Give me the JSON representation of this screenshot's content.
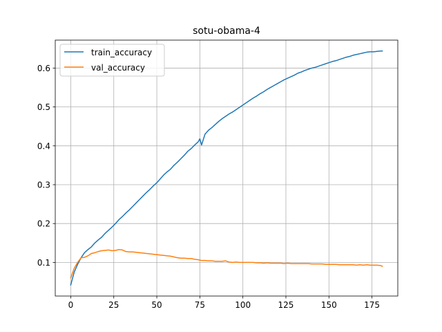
{
  "chart_data": {
    "type": "line",
    "title": "sotu-obama-4",
    "xlabel": "",
    "ylabel": "",
    "xlim": [
      -9,
      190
    ],
    "ylim": [
      0.0135,
      0.672
    ],
    "xticks": [
      0,
      25,
      50,
      75,
      100,
      125,
      150,
      175
    ],
    "yticks": [
      0.1,
      0.2,
      0.3,
      0.4,
      0.5,
      0.6
    ],
    "xtick_labels": [
      "0",
      "25",
      "50",
      "75",
      "100",
      "125",
      "150",
      "175"
    ],
    "ytick_labels": [
      "0.1",
      "0.2",
      "0.3",
      "0.4",
      "0.5",
      "0.6"
    ],
    "grid": true,
    "legend_position": "upper left",
    "series": [
      {
        "name": "train_accuracy",
        "color": "#1f77b4",
        "x": [
          0,
          2,
          4,
          6,
          8,
          10,
          12,
          14,
          16,
          18,
          20,
          22,
          24,
          26,
          28,
          30,
          32,
          34,
          36,
          38,
          40,
          42,
          44,
          46,
          48,
          50,
          52,
          54,
          56,
          58,
          60,
          62,
          64,
          66,
          68,
          70,
          72,
          74,
          75,
          76,
          78,
          80,
          82,
          84,
          86,
          88,
          90,
          92,
          94,
          96,
          98,
          100,
          102,
          104,
          106,
          108,
          110,
          112,
          114,
          116,
          118,
          120,
          122,
          124,
          126,
          128,
          130,
          132,
          134,
          136,
          138,
          140,
          142,
          144,
          146,
          148,
          150,
          152,
          154,
          156,
          158,
          160,
          162,
          164,
          166,
          168,
          170,
          172,
          174,
          176,
          178,
          180,
          181
        ],
        "values": [
          0.042,
          0.075,
          0.095,
          0.112,
          0.125,
          0.133,
          0.14,
          0.15,
          0.158,
          0.165,
          0.175,
          0.183,
          0.191,
          0.2,
          0.21,
          0.218,
          0.227,
          0.235,
          0.244,
          0.253,
          0.262,
          0.271,
          0.28,
          0.288,
          0.297,
          0.305,
          0.315,
          0.325,
          0.333,
          0.34,
          0.35,
          0.358,
          0.367,
          0.376,
          0.386,
          0.393,
          0.402,
          0.41,
          0.418,
          0.402,
          0.43,
          0.44,
          0.447,
          0.455,
          0.463,
          0.47,
          0.476,
          0.482,
          0.487,
          0.493,
          0.499,
          0.505,
          0.511,
          0.517,
          0.523,
          0.528,
          0.534,
          0.539,
          0.545,
          0.55,
          0.555,
          0.56,
          0.565,
          0.57,
          0.574,
          0.578,
          0.582,
          0.587,
          0.59,
          0.594,
          0.597,
          0.6,
          0.602,
          0.605,
          0.608,
          0.611,
          0.614,
          0.617,
          0.619,
          0.622,
          0.625,
          0.628,
          0.63,
          0.633,
          0.635,
          0.637,
          0.639,
          0.641,
          0.642,
          0.642,
          0.643,
          0.644,
          0.644
        ]
      },
      {
        "name": "val_accuracy",
        "color": "#ff7f0e",
        "x": [
          0,
          2,
          4,
          6,
          8,
          10,
          12,
          14,
          16,
          18,
          20,
          22,
          24,
          26,
          28,
          30,
          32,
          34,
          36,
          38,
          40,
          42,
          44,
          46,
          48,
          50,
          52,
          54,
          56,
          58,
          60,
          62,
          64,
          66,
          68,
          70,
          72,
          74,
          76,
          78,
          80,
          82,
          84,
          86,
          88,
          90,
          92,
          94,
          96,
          98,
          100,
          102,
          104,
          106,
          108,
          110,
          112,
          114,
          116,
          118,
          120,
          122,
          124,
          126,
          128,
          130,
          132,
          134,
          136,
          138,
          140,
          142,
          144,
          146,
          148,
          150,
          152,
          154,
          156,
          158,
          160,
          162,
          164,
          166,
          168,
          170,
          172,
          174,
          176,
          178,
          180,
          181
        ],
        "values": [
          0.06,
          0.085,
          0.1,
          0.112,
          0.113,
          0.117,
          0.123,
          0.125,
          0.128,
          0.13,
          0.131,
          0.132,
          0.13,
          0.131,
          0.133,
          0.132,
          0.128,
          0.127,
          0.127,
          0.126,
          0.125,
          0.124,
          0.123,
          0.122,
          0.121,
          0.12,
          0.119,
          0.118,
          0.117,
          0.116,
          0.114,
          0.112,
          0.111,
          0.111,
          0.11,
          0.11,
          0.108,
          0.107,
          0.105,
          0.105,
          0.104,
          0.104,
          0.103,
          0.103,
          0.103,
          0.104,
          0.101,
          0.1,
          0.101,
          0.1,
          0.1,
          0.1,
          0.1,
          0.1,
          0.099,
          0.099,
          0.098,
          0.099,
          0.098,
          0.098,
          0.098,
          0.098,
          0.097,
          0.098,
          0.097,
          0.097,
          0.097,
          0.097,
          0.097,
          0.097,
          0.096,
          0.096,
          0.096,
          0.096,
          0.095,
          0.095,
          0.095,
          0.095,
          0.094,
          0.094,
          0.094,
          0.094,
          0.094,
          0.093,
          0.094,
          0.093,
          0.094,
          0.093,
          0.093,
          0.093,
          0.092,
          0.09
        ]
      }
    ]
  }
}
